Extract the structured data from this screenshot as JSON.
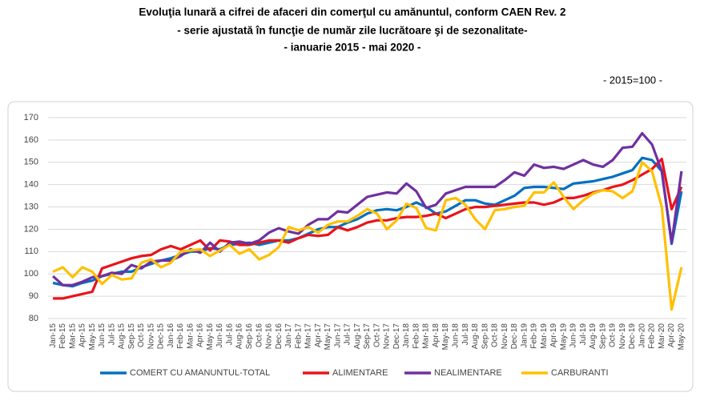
{
  "chart_data": {
    "type": "line",
    "title_lines": [
      "Evoluţia lunară a cifrei de afaceri din comerţul cu amănuntul,  conform CAEN Rev. 2",
      "- serie ajustată în funcţie de număr zile lucrătoare şi de sezonalitate-",
      "- ianuarie 2015 -  mai 2020  -"
    ],
    "note": "- 2015=100 -",
    "categories": [
      "Jan-15",
      "Feb-15",
      "Mar-15",
      "Apr-15",
      "May-15",
      "Jun-15",
      "Jul-15",
      "Aug-15",
      "Sep-15",
      "Oct-15",
      "Nov-15",
      "Dec-15",
      "Jan-16",
      "Feb-16",
      "Mar-16",
      "Apr-16",
      "May-16",
      "Jun-16",
      "Jul-16",
      "Aug-16",
      "Sep-16",
      "Oct-16",
      "Nov-16",
      "Dec-16",
      "Jan-17",
      "Feb-17",
      "Mar-17",
      "Apr-17",
      "May-17",
      "Jun-17",
      "Jul-17",
      "Aug-17",
      "Sep-17",
      "Oct-17",
      "Nov-17",
      "Dec-17",
      "Jan-18",
      "Feb-18",
      "Mar-18",
      "Apr-18",
      "May-18",
      "Jun-18",
      "Jul-18",
      "Aug-18",
      "Sep-18",
      "Oct-18",
      "Nov-18",
      "Dec-18",
      "Jan-19",
      "Feb-19",
      "Mar-19",
      "Apr-19",
      "May-19",
      "Jun-19",
      "Jul-19",
      "Aug-19",
      "Sep-19",
      "Oct-19",
      "Nov-19",
      "Dec-19",
      "Jan-20",
      "Feb-20",
      "Mar-20",
      "Apr-20",
      "May-20"
    ],
    "series": [
      {
        "name": "COMERT CU AMANUNTUL-TOTAL",
        "color": "#0070c0",
        "values": [
          96,
          95,
          94.5,
          96,
          97,
          99,
          100,
          101,
          101,
          103,
          104.5,
          106,
          107,
          108.5,
          110,
          110,
          111.5,
          111,
          113,
          113.5,
          114,
          113,
          114,
          115,
          115,
          116,
          118,
          120,
          121,
          121,
          123,
          124.5,
          127,
          128.5,
          129,
          128.5,
          130,
          132,
          130,
          127,
          128,
          130.5,
          133,
          133,
          131.5,
          131,
          133,
          135,
          138.5,
          139,
          139,
          138.5,
          138,
          140.5,
          141,
          141.5,
          142.5,
          143.5,
          145,
          146.5,
          152,
          151,
          146,
          113.5,
          137
        ]
      },
      {
        "name": "ALIMENTARE",
        "color": "#e8141a",
        "values": [
          89,
          89,
          90,
          91,
          92,
          102.5,
          104,
          105.5,
          107,
          108,
          108.5,
          111,
          112.5,
          111,
          113,
          115,
          110.5,
          115,
          114.5,
          113,
          113,
          114,
          115,
          115,
          114,
          116,
          117.5,
          117,
          117.5,
          121,
          119.5,
          121,
          123,
          124,
          124,
          125,
          125.5,
          125.5,
          126,
          127,
          125,
          127,
          129,
          130,
          130,
          130.5,
          131,
          131.5,
          132,
          132,
          131,
          132,
          134,
          134,
          135,
          136.5,
          137.5,
          139,
          140,
          142,
          144.5,
          147,
          151.5,
          129,
          139
        ]
      },
      {
        "name": "NEALIMENTARE",
        "color": "#7030a0",
        "values": [
          99,
          95,
          95,
          96.5,
          98.5,
          99,
          100.5,
          100,
          104,
          102.5,
          105.5,
          106,
          106,
          108,
          111,
          109.5,
          114,
          110,
          114,
          114.5,
          113.5,
          115,
          118.5,
          120.5,
          119,
          118,
          122,
          124.5,
          124.5,
          128,
          127.5,
          131,
          134.5,
          135.5,
          136.5,
          136,
          140.5,
          137,
          129.5,
          131,
          136,
          137.5,
          139,
          139,
          139,
          139,
          142,
          145.5,
          144,
          149,
          147.5,
          148,
          147,
          149,
          151,
          149,
          148,
          151,
          156.5,
          157,
          163,
          158,
          146,
          114,
          146
        ]
      },
      {
        "name": "CARBURANTI",
        "color": "#ffc000",
        "values": [
          101,
          103,
          98.5,
          103,
          101,
          95.5,
          99.5,
          97.5,
          98,
          105,
          106.5,
          103,
          105,
          110,
          110.5,
          111,
          108,
          110.5,
          113,
          109,
          111,
          106.5,
          108.5,
          112,
          121,
          119.5,
          121,
          118.5,
          122,
          123.5,
          123.5,
          126,
          129,
          127,
          120,
          124,
          131.5,
          129.5,
          120.5,
          119.5,
          133,
          134,
          131,
          124.5,
          120,
          128.5,
          129,
          130,
          130.5,
          136.5,
          136.5,
          141,
          134.5,
          129,
          133,
          136,
          137.5,
          137,
          134,
          137,
          150,
          146,
          130,
          84,
          103
        ]
      }
    ],
    "ylim": [
      80,
      170
    ],
    "yticks": [
      80,
      90,
      100,
      110,
      120,
      130,
      140,
      150,
      160,
      170
    ],
    "grid": true
  }
}
